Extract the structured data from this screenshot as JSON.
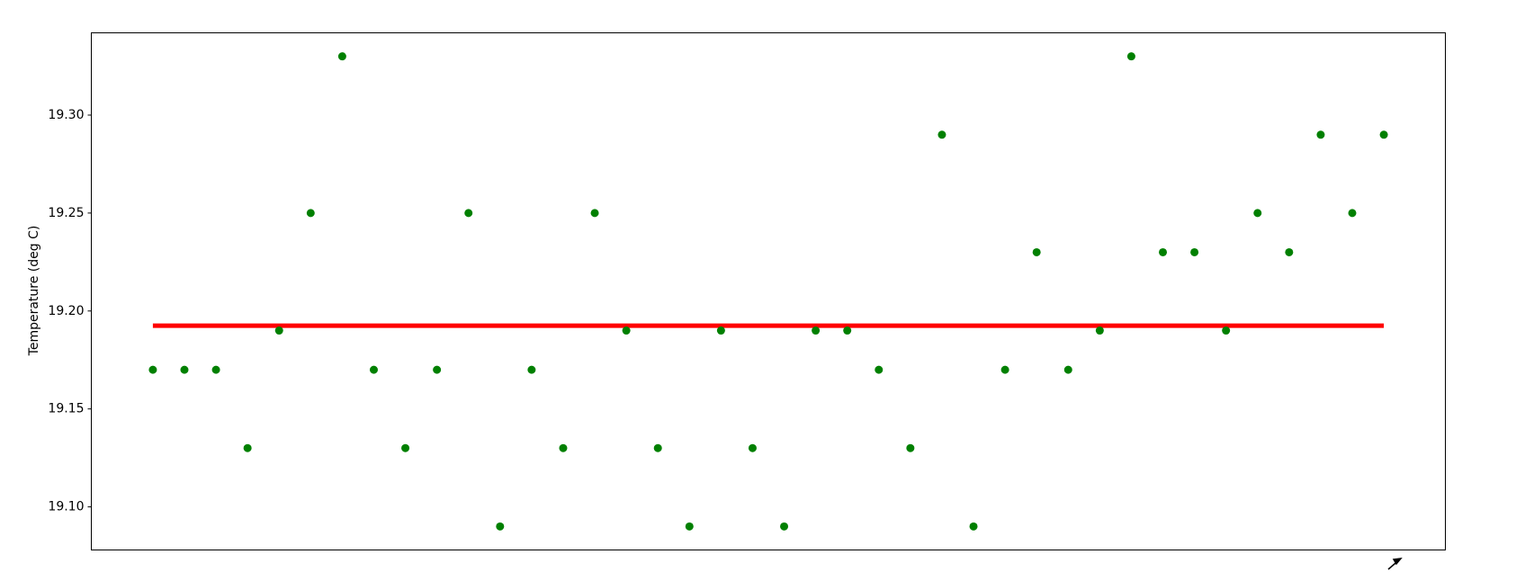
{
  "chart_data": {
    "type": "scatter",
    "ylabel": "Temperature (deg C)",
    "x": [
      0,
      1,
      2,
      3,
      4,
      5,
      6,
      7,
      8,
      9,
      10,
      11,
      12,
      13,
      14,
      15,
      16,
      17,
      18,
      19,
      20,
      21,
      22,
      23,
      24,
      25,
      26,
      27,
      28,
      29,
      30,
      31,
      32,
      33,
      34,
      35,
      36,
      37,
      38,
      39
    ],
    "values": [
      19.17,
      19.17,
      19.17,
      19.13,
      19.19,
      19.25,
      19.33,
      19.17,
      19.13,
      19.17,
      19.25,
      19.09,
      19.17,
      19.13,
      19.25,
      19.19,
      19.13,
      19.09,
      19.19,
      19.13,
      19.09,
      19.19,
      19.19,
      19.17,
      19.13,
      19.29,
      19.09,
      19.17,
      19.23,
      19.17,
      19.19,
      19.33,
      19.23,
      19.23,
      19.19,
      19.25,
      19.23,
      19.29,
      19.25,
      19.29
    ],
    "color": "#008000",
    "line": {
      "x": [
        0,
        39
      ],
      "values": [
        19.1925,
        19.1925
      ],
      "color": "#ff0000"
    },
    "xlim": [
      -1.95,
      40.95
    ],
    "ylim": [
      19.078,
      19.342
    ],
    "yticks": [
      {
        "value": 19.1,
        "label": "19.10"
      },
      {
        "value": 19.15,
        "label": "19.15"
      },
      {
        "value": 19.2,
        "label": "19.20"
      },
      {
        "value": 19.25,
        "label": "19.25"
      },
      {
        "value": 19.3,
        "label": "19.30"
      }
    ],
    "grid": false
  }
}
